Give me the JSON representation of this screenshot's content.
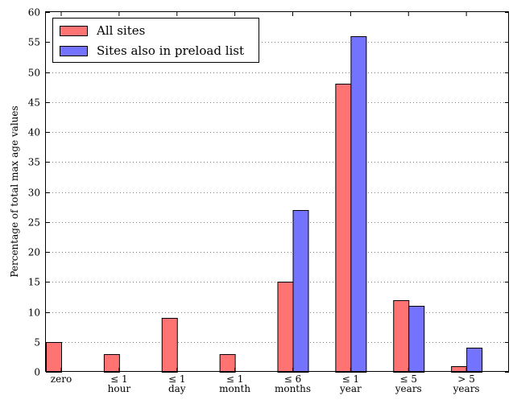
{
  "chart_data": {
    "type": "bar",
    "title": "",
    "xlabel": "",
    "ylabel": "Percentage of total max age values",
    "ylim": [
      0,
      60
    ],
    "yticks": [
      0,
      5,
      10,
      15,
      20,
      25,
      30,
      35,
      40,
      45,
      50,
      55,
      60
    ],
    "grid": "horizontal dotted",
    "legend_position": "top-left",
    "categories": [
      [
        "zero"
      ],
      [
        "≤ 1",
        "hour"
      ],
      [
        "≤ 1",
        "day"
      ],
      [
        "≤ 1",
        "month"
      ],
      [
        "≤ 6",
        "months"
      ],
      [
        "≤ 1",
        "year"
      ],
      [
        "≤ 5",
        "years"
      ],
      [
        "> 5",
        "years"
      ]
    ],
    "series": [
      {
        "name": "All sites",
        "color": "#ff7373",
        "values": [
          5,
          3,
          9,
          3,
          15,
          48,
          12,
          1
        ]
      },
      {
        "name": "Sites also in preload list",
        "color": "#7373ff",
        "values": [
          0,
          0,
          0,
          0,
          27,
          56,
          11,
          4
        ]
      }
    ]
  }
}
